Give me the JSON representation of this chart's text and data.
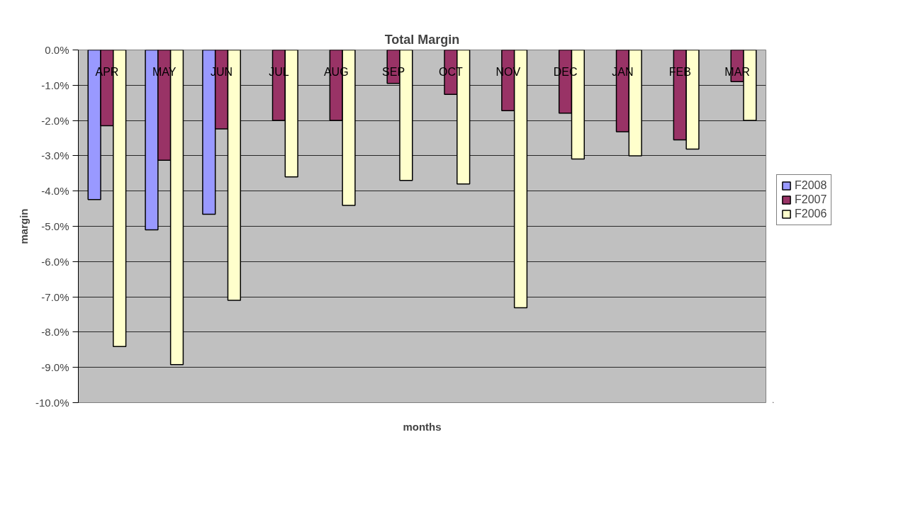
{
  "chart_data": {
    "type": "bar",
    "title": "Total Margin",
    "xlabel": "months",
    "ylabel": "margin",
    "categories": [
      "APR",
      "MAY",
      "JUN",
      "JUL",
      "AUG",
      "SEP",
      "OCT",
      "NOV",
      "DEC",
      "JAN",
      "FEB",
      "MAR"
    ],
    "series": [
      {
        "name": "F2008",
        "color": "#9999ff",
        "values": [
          -4.24,
          -5.1,
          -4.66,
          null,
          null,
          null,
          null,
          null,
          null,
          null,
          null,
          null
        ]
      },
      {
        "name": "F2007",
        "color": "#993366",
        "values": [
          -2.15,
          -3.13,
          -2.24,
          -2.0,
          -2.0,
          -0.95,
          -1.26,
          -1.72,
          -1.79,
          -2.32,
          -2.55,
          -0.9
        ]
      },
      {
        "name": "F2006",
        "color": "#ffffcc",
        "values": [
          -8.41,
          -8.92,
          -7.1,
          -3.6,
          -4.41,
          -3.7,
          -3.8,
          -7.31,
          -3.09,
          -3.0,
          -2.81,
          -2.0
        ]
      }
    ],
    "ylim": [
      -10,
      0
    ],
    "yticks": [
      {
        "value": 0,
        "label": "0.0%"
      },
      {
        "value": -1,
        "label": "-1.0%"
      },
      {
        "value": -2,
        "label": "-2.0%"
      },
      {
        "value": -3,
        "label": "-3.0%"
      },
      {
        "value": -4,
        "label": "-4.0%"
      },
      {
        "value": -5,
        "label": "-5.0%"
      },
      {
        "value": -6,
        "label": "-6.0%"
      },
      {
        "value": -7,
        "label": "-7.0%"
      },
      {
        "value": -8,
        "label": "-8.0%"
      },
      {
        "value": -9,
        "label": "-9.0%"
      },
      {
        "value": -10,
        "label": "-10.0%"
      }
    ],
    "grid": "y",
    "legend": "right"
  }
}
